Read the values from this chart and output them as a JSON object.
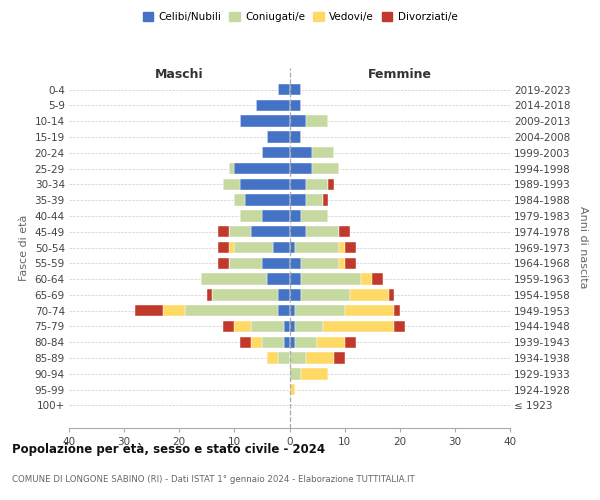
{
  "age_groups": [
    "100+",
    "95-99",
    "90-94",
    "85-89",
    "80-84",
    "75-79",
    "70-74",
    "65-69",
    "60-64",
    "55-59",
    "50-54",
    "45-49",
    "40-44",
    "35-39",
    "30-34",
    "25-29",
    "20-24",
    "15-19",
    "10-14",
    "5-9",
    "0-4"
  ],
  "birth_years": [
    "≤ 1923",
    "1924-1928",
    "1929-1933",
    "1934-1938",
    "1939-1943",
    "1944-1948",
    "1949-1953",
    "1954-1958",
    "1959-1963",
    "1964-1968",
    "1969-1973",
    "1974-1978",
    "1979-1983",
    "1984-1988",
    "1989-1993",
    "1994-1998",
    "1999-2003",
    "2004-2008",
    "2009-2013",
    "2014-2018",
    "2019-2023"
  ],
  "males": {
    "celibe": [
      0,
      0,
      0,
      0,
      1,
      1,
      2,
      2,
      4,
      5,
      3,
      7,
      5,
      8,
      9,
      10,
      5,
      4,
      9,
      6,
      2
    ],
    "coniugato": [
      0,
      0,
      0,
      2,
      4,
      6,
      17,
      12,
      12,
      6,
      7,
      4,
      4,
      2,
      3,
      1,
      0,
      0,
      0,
      0,
      0
    ],
    "vedovo": [
      0,
      0,
      0,
      2,
      2,
      3,
      4,
      0,
      0,
      0,
      1,
      0,
      0,
      0,
      0,
      0,
      0,
      0,
      0,
      0,
      0
    ],
    "divorziato": [
      0,
      0,
      0,
      0,
      2,
      2,
      5,
      1,
      0,
      2,
      2,
      2,
      0,
      0,
      0,
      0,
      0,
      0,
      0,
      0,
      0
    ]
  },
  "females": {
    "nubile": [
      0,
      0,
      0,
      0,
      1,
      1,
      1,
      2,
      2,
      2,
      1,
      3,
      2,
      3,
      3,
      4,
      4,
      2,
      3,
      2,
      2
    ],
    "coniugata": [
      0,
      0,
      2,
      3,
      4,
      5,
      9,
      9,
      11,
      7,
      8,
      6,
      5,
      3,
      4,
      5,
      4,
      0,
      4,
      0,
      0
    ],
    "vedova": [
      0,
      1,
      5,
      5,
      5,
      13,
      9,
      7,
      2,
      1,
      1,
      0,
      0,
      0,
      0,
      0,
      0,
      0,
      0,
      0,
      0
    ],
    "divorziata": [
      0,
      0,
      0,
      2,
      2,
      2,
      1,
      1,
      2,
      2,
      2,
      2,
      0,
      1,
      1,
      0,
      0,
      0,
      0,
      0,
      0
    ]
  },
  "colors": {
    "celibe": "#4472c4",
    "coniugato": "#c5d9a0",
    "vedovo": "#ffd966",
    "divorziato": "#c0392b"
  },
  "xlim": 40,
  "title": "Popolazione per età, sesso e stato civile - 2024",
  "subtitle": "COMUNE DI LONGONE SABINO (RI) - Dati ISTAT 1° gennaio 2024 - Elaborazione TUTTITALIA.IT",
  "ylabel_left": "Fasce di età",
  "ylabel_right": "Anni di nascita",
  "xlabel_maschi": "Maschi",
  "xlabel_femmine": "Femmine",
  "bg_color": "#ffffff",
  "grid_color": "#cccccc",
  "legend": [
    "Celibi/Nubili",
    "Coniugati/e",
    "Vedovi/e",
    "Divorziati/e"
  ]
}
